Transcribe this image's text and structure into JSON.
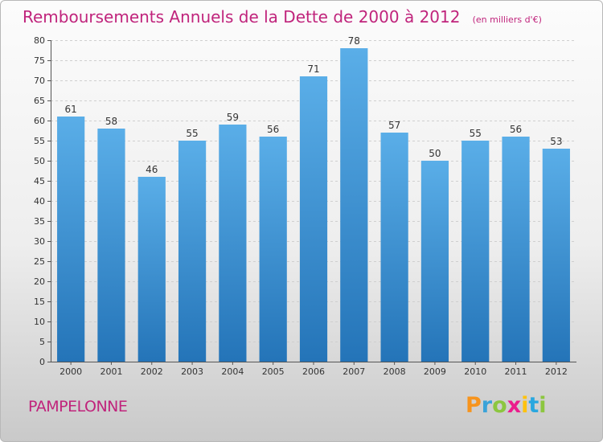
{
  "header": {
    "title": "Remboursements Annuels de la Dette de 2000 à 2012",
    "subtitle": "(en milliers d'€)"
  },
  "footer": {
    "city": "PAMPELONNE",
    "brand": "Proxiti"
  },
  "colors": {
    "title": "#c0247c",
    "bar_top": "#5aaee8",
    "bar_bottom": "#2474b8"
  },
  "chart_data": {
    "type": "bar",
    "title": "Remboursements Annuels de la Dette de 2000 à 2012",
    "subtitle": "(en milliers d'€)",
    "categories": [
      "2000",
      "2001",
      "2002",
      "2003",
      "2004",
      "2005",
      "2006",
      "2007",
      "2008",
      "2009",
      "2010",
      "2011",
      "2012"
    ],
    "values": [
      61,
      58,
      46,
      55,
      59,
      56,
      71,
      78,
      57,
      50,
      55,
      56,
      53
    ],
    "ylim": [
      0,
      80
    ],
    "yticks": [
      0,
      5,
      10,
      15,
      20,
      25,
      30,
      35,
      40,
      45,
      50,
      55,
      60,
      65,
      70,
      75,
      80
    ],
    "grid": true,
    "data_labels": true
  }
}
